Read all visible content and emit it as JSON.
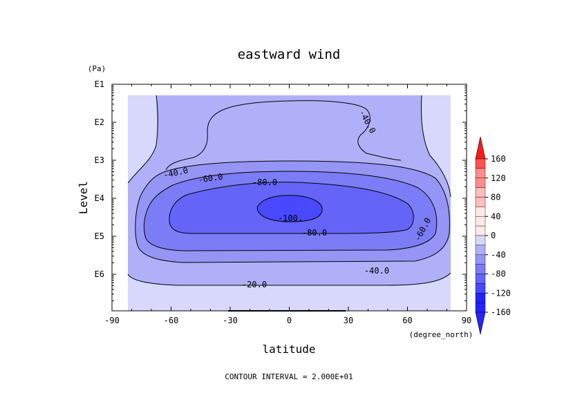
{
  "colors": {
    "background": "#ffffff",
    "neg_160_120": "#2424ff",
    "neg_120_100": "#4848ff",
    "neg_100_80": "#6464f8",
    "neg_80_60": "#7c7cf6",
    "neg_60_40": "#9595f6",
    "neg_40_20": "#b0b0f8",
    "neg_20_0": "#d8d8fc",
    "pos_0_40": "#ffe9e9",
    "pos_40_80": "#ffbcbc",
    "pos_80_120": "#ff8c8c",
    "pos_120_160": "#ff5252",
    "pos_over_160": "#ff1a1a"
  },
  "chart_data": {
    "type": "contour",
    "title": "eastward wind",
    "xlabel": "latitude",
    "x_unit": "(degree_north)",
    "ylabel": "Level",
    "y_unit": "(Pa)",
    "y_scale": "log",
    "xlim": [
      -90,
      90
    ],
    "x_ticks": [
      -90,
      -60,
      -30,
      0,
      30,
      60,
      90
    ],
    "x_tick_labels": [
      "-90",
      "-60",
      "-30",
      "0",
      "30",
      "60",
      "90"
    ],
    "y_ticks": [
      "E1",
      "E2",
      "E3",
      "E4",
      "E5",
      "E6"
    ],
    "contour_interval_text": "CONTOUR INTERVAL = 2.000E+01",
    "contour_labels": [
      "-40.0",
      "-60.0",
      "-80.0",
      "-100.",
      "-80.0",
      "-60.0",
      "-40.0",
      "-40.0",
      "-20.0"
    ],
    "colorbar": {
      "labels": [
        "160",
        "120",
        "80",
        "40",
        "0",
        "-40",
        "-80",
        "-120",
        "-160"
      ],
      "levels": [
        160,
        120,
        80,
        40,
        0,
        -40,
        -80,
        -120,
        -160
      ]
    }
  }
}
